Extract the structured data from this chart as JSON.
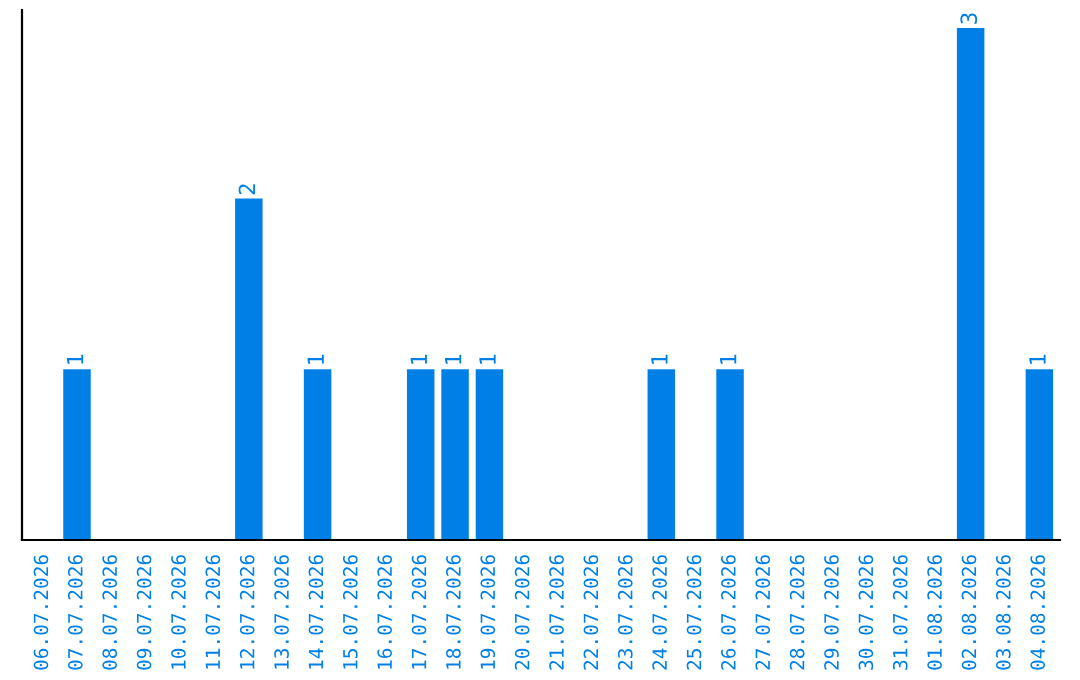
{
  "chart_data": {
    "type": "bar",
    "categories": [
      "06.07.2026",
      "07.07.2026",
      "08.07.2026",
      "09.07.2026",
      "10.07.2026",
      "11.07.2026",
      "12.07.2026",
      "13.07.2026",
      "14.07.2026",
      "15.07.2026",
      "16.07.2026",
      "17.07.2026",
      "18.07.2026",
      "19.07.2026",
      "20.07.2026",
      "21.07.2026",
      "22.07.2026",
      "23.07.2026",
      "24.07.2026",
      "25.07.2026",
      "26.07.2026",
      "27.07.2026",
      "28.07.2026",
      "29.07.2026",
      "30.07.2026",
      "31.07.2026",
      "01.08.2026",
      "02.08.2026",
      "03.08.2026",
      "04.08.2026"
    ],
    "values": [
      0,
      1,
      0,
      0,
      0,
      0,
      2,
      0,
      1,
      0,
      0,
      1,
      1,
      1,
      0,
      0,
      0,
      0,
      1,
      0,
      1,
      0,
      0,
      0,
      0,
      0,
      0,
      3,
      0,
      1
    ],
    "value_labels": [
      null,
      "1",
      null,
      null,
      null,
      null,
      "2",
      null,
      "1",
      null,
      null,
      "1",
      "1",
      "1",
      null,
      null,
      null,
      null,
      "1",
      null,
      "1",
      null,
      null,
      null,
      null,
      null,
      null,
      "3",
      null,
      "1"
    ],
    "color": "#0080e6",
    "grid": false,
    "legend": false
  }
}
